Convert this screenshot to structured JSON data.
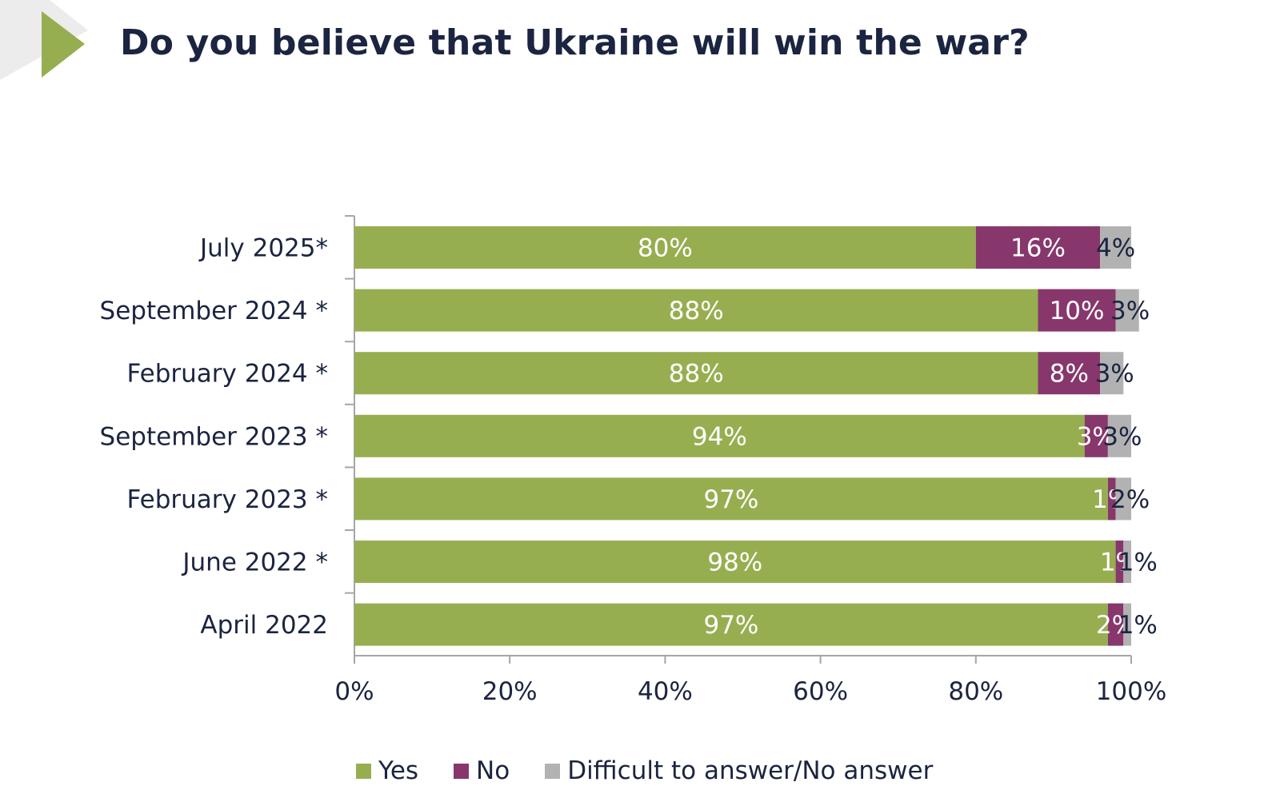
{
  "header": {
    "title": "Do you believe that Ukraine will win the war?"
  },
  "colors": {
    "yes": "#97ae50",
    "no": "#87376c",
    "dk": "#b2b2b2",
    "triangle": "#97ae50",
    "corner": "#ececec",
    "text": "#1b2440",
    "axis": "#a6a6a6"
  },
  "chart_data": {
    "type": "bar",
    "orientation": "horizontal",
    "stacked": true,
    "title": "Do you believe that Ukraine will win the war?",
    "categories": [
      "July 2025*",
      "September 2024 *",
      "February 2024 *",
      "September 2023 *",
      "February 2023 *",
      "June 2022 *",
      "April 2022"
    ],
    "series": [
      {
        "name": "Yes",
        "key": "yes",
        "values": [
          80,
          88,
          88,
          94,
          97,
          98,
          97
        ],
        "labels": [
          "80%",
          "88%",
          "88%",
          "94%",
          "97%",
          "98%",
          "97%"
        ]
      },
      {
        "name": "No",
        "key": "no",
        "values": [
          16,
          10,
          8,
          3,
          1,
          1,
          2
        ],
        "labels": [
          "16%",
          "10%",
          "8%",
          "3%",
          "1%",
          "1%",
          "2%"
        ]
      },
      {
        "name": "Difficult to answer/No answer",
        "key": "dk",
        "values": [
          4,
          3,
          3,
          3,
          2,
          1,
          1
        ],
        "labels": [
          "4%",
          "3%",
          "3%",
          "3%",
          "2%",
          "1%",
          "1%"
        ]
      }
    ],
    "xlim": [
      0,
      100
    ],
    "xticks": [
      0,
      20,
      40,
      60,
      80,
      100
    ],
    "xtick_labels": [
      "0%",
      "20%",
      "40%",
      "60%",
      "80%",
      "100%"
    ],
    "grid": false,
    "legend_position": "bottom"
  }
}
